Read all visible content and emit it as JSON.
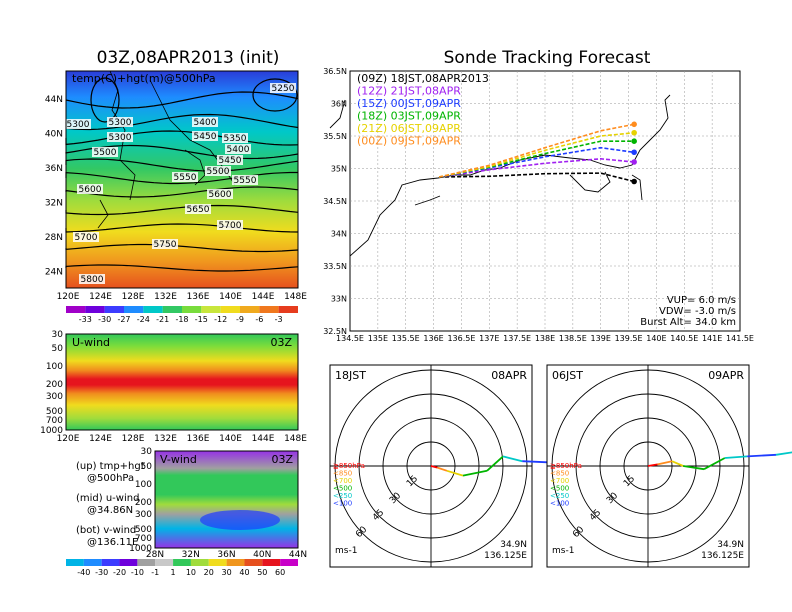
{
  "left": {
    "title": "03Z,08APR2013 (init)",
    "top_map": {
      "label": "temp(C)+hgt(m)@500hPa",
      "lat_labels": [
        "44N",
        "40N",
        "36N",
        "32N",
        "28N",
        "24N"
      ],
      "lon_labels": [
        "120E",
        "124E",
        "128E",
        "132E",
        "136E",
        "140E",
        "144E",
        "148E"
      ],
      "contour_labels": [
        "5250",
        "5300",
        "5400",
        "5300",
        "5450",
        "5350",
        "5500",
        "5400",
        "5450",
        "5550",
        "5500",
        "5600",
        "5550",
        "5650",
        "5600",
        "5700",
        "5700",
        "5750",
        "5800",
        "5300"
      ],
      "colorbar_ticks": [
        "-33",
        "-30",
        "-27",
        "-24",
        "-21",
        "-18",
        "-15",
        "-12",
        "-9",
        "-6",
        "-3"
      ]
    },
    "u_panel": {
      "label": "U-wind",
      "time": "03Z",
      "y_labels": [
        "30",
        "50",
        "100",
        "200",
        "300",
        "500",
        "700",
        "1000"
      ],
      "x_labels": [
        "120E",
        "124E",
        "128E",
        "132E",
        "136E",
        "140E",
        "144E",
        "148E"
      ]
    },
    "v_panel": {
      "label": "V-wind",
      "time": "03Z",
      "y_labels": [
        "30",
        "50",
        "100",
        "200",
        "300",
        "500",
        "700",
        "1000"
      ],
      "x_labels": [
        "28N",
        "32N",
        "36N",
        "40N",
        "44N"
      ]
    },
    "legend": [
      "(up) tmp+hgt",
      "@500hPa",
      "(mid) u-wind",
      "@34.86N",
      "(bot) v-wind",
      "@136.11E"
    ],
    "bottom_colorbar_ticks": [
      "-40",
      "-30",
      "-20",
      "-10",
      "-1",
      "1",
      "10",
      "20",
      "30",
      "40",
      "50",
      "60"
    ]
  },
  "right": {
    "title": "Sonde Tracking Forecast",
    "map": {
      "lat_labels": [
        "36.5N",
        "36N",
        "35.5N",
        "35N",
        "34.5N",
        "34N",
        "33.5N",
        "33N",
        "32.5N"
      ],
      "lon_labels": [
        "134.5E",
        "135E",
        "135.5E",
        "136E",
        "136.5E",
        "137E",
        "137.5E",
        "138E",
        "138.5E",
        "139E",
        "139.5E",
        "140E",
        "140.5E",
        "141E",
        "141.5E"
      ],
      "legend": [
        {
          "text": "(09Z)  18JST,08APR2013",
          "color": "#000000"
        },
        {
          "text": "(12Z)  21JST,08APR",
          "color": "#a020f0"
        },
        {
          "text": "(15Z)  00JST,09APR",
          "color": "#1e3cff"
        },
        {
          "text": "(18Z)  03JST,09APR",
          "color": "#00b400"
        },
        {
          "text": "(21Z)  06JST,09APR",
          "color": "#e6d200"
        },
        {
          "text": "(00Z)  09JST,09APR",
          "color": "#ff8c1e"
        }
      ],
      "params": [
        "VUP=  6.0  m/s",
        "VDW= -3.0  m/s",
        "Burst Alt=  34.0  km"
      ]
    },
    "hodographs": [
      {
        "time": "18JST",
        "date": "08APR",
        "lat": "34.9N",
        "lon": "136.125E",
        "unit": "ms-1"
      },
      {
        "time": "06JST",
        "date": "09APR",
        "lat": "34.9N",
        "lon": "136.125E",
        "unit": "ms-1"
      }
    ],
    "hodo_rings": [
      "15",
      "30",
      "45",
      "60"
    ],
    "hodo_levels": [
      {
        "text": "≧850hPa",
        "color": "#ff0000"
      },
      {
        "text": "<850",
        "color": "#ff8c1e"
      },
      {
        "text": "<700",
        "color": "#e6d200"
      },
      {
        "text": "<500",
        "color": "#00b400"
      },
      {
        "text": "<250",
        "color": "#00c8c8"
      },
      {
        "text": "<100",
        "color": "#1e3cff"
      }
    ]
  },
  "chart_data": [
    {
      "type": "heatmap",
      "title": "03Z,08APR2013 (init)",
      "annotation": "temp(C)+hgt(m)@500hPa",
      "x_range": [
        "120E",
        "148E"
      ],
      "y_range": [
        "24N",
        "44N"
      ],
      "contours_m": [
        5250,
        5300,
        5350,
        5400,
        5450,
        5500,
        5550,
        5600,
        5650,
        5700,
        5750,
        5800
      ],
      "colorbar_C": [
        -33,
        -30,
        -27,
        -24,
        -21,
        -18,
        -15,
        -12,
        -9,
        -6,
        -3
      ]
    },
    {
      "type": "heatmap",
      "annotation": "U-wind 03Z",
      "x_range": [
        "120E",
        "148E"
      ],
      "y_levels_hPa": [
        30,
        50,
        100,
        200,
        300,
        500,
        700,
        1000
      ]
    },
    {
      "type": "heatmap",
      "annotation": "V-wind 03Z",
      "x_range": [
        "28N",
        "44N"
      ],
      "y_levels_hPa": [
        30,
        50,
        100,
        200,
        300,
        500,
        700,
        1000
      ],
      "colorbar_ms": [
        -40,
        -30,
        -20,
        -10,
        -1,
        1,
        10,
        20,
        30,
        40,
        50,
        60
      ]
    },
    {
      "type": "line",
      "title": "Sonde Tracking Forecast",
      "xlim": [
        134.5,
        141.5
      ],
      "ylim": [
        32.5,
        36.5
      ],
      "series": [
        {
          "name": "(09Z) 18JST,08APR2013",
          "color": "#000000",
          "x": [
            136.1,
            137.0,
            138.0,
            139.0,
            139.6
          ],
          "y": [
            34.87,
            34.88,
            34.92,
            34.93,
            34.8
          ]
        },
        {
          "name": "(12Z) 21JST,08APR",
          "color": "#a020f0",
          "x": [
            136.1,
            137.0,
            138.0,
            139.0,
            139.6
          ],
          "y": [
            34.87,
            34.98,
            35.08,
            35.15,
            35.1
          ]
        },
        {
          "name": "(15Z) 00JST,09APR",
          "color": "#1e3cff",
          "x": [
            136.1,
            137.0,
            138.0,
            139.0,
            139.6
          ],
          "y": [
            34.87,
            35.01,
            35.18,
            35.32,
            35.25
          ]
        },
        {
          "name": "(18Z) 03JST,09APR",
          "color": "#00b400",
          "x": [
            136.1,
            137.0,
            138.0,
            139.0,
            139.6
          ],
          "y": [
            34.87,
            35.02,
            35.23,
            35.42,
            35.42
          ]
        },
        {
          "name": "(21Z) 06JST,09APR",
          "color": "#e6d200",
          "x": [
            136.1,
            137.0,
            138.0,
            139.0,
            139.6
          ],
          "y": [
            34.87,
            35.03,
            35.28,
            35.5,
            35.55
          ]
        },
        {
          "name": "(00Z) 09JST,09APR",
          "color": "#ff8c1e",
          "x": [
            136.1,
            137.0,
            138.0,
            139.0,
            139.6
          ],
          "y": [
            34.87,
            35.05,
            35.32,
            35.58,
            35.68
          ]
        }
      ]
    },
    {
      "type": "line",
      "annotation": "hodograph 18JST 08APR",
      "rings_ms": [
        15,
        30,
        45,
        60
      ],
      "points_uv": [
        [
          0,
          0
        ],
        [
          4,
          -1
        ],
        [
          10,
          -3
        ],
        [
          20,
          -6
        ],
        [
          35,
          -3
        ],
        [
          45,
          6
        ],
        [
          57,
          3
        ],
        [
          80,
          2
        ],
        [
          95,
          -5
        ],
        [
          108,
          -10
        ]
      ]
    },
    {
      "type": "line",
      "annotation": "hodograph 06JST 09APR",
      "points_uv": [
        [
          0,
          0
        ],
        [
          6,
          1
        ],
        [
          15,
          3
        ],
        [
          22,
          0
        ],
        [
          35,
          -2
        ],
        [
          48,
          5
        ],
        [
          62,
          6
        ],
        [
          80,
          7
        ],
        [
          100,
          10
        ],
        [
          115,
          13
        ]
      ]
    }
  ]
}
